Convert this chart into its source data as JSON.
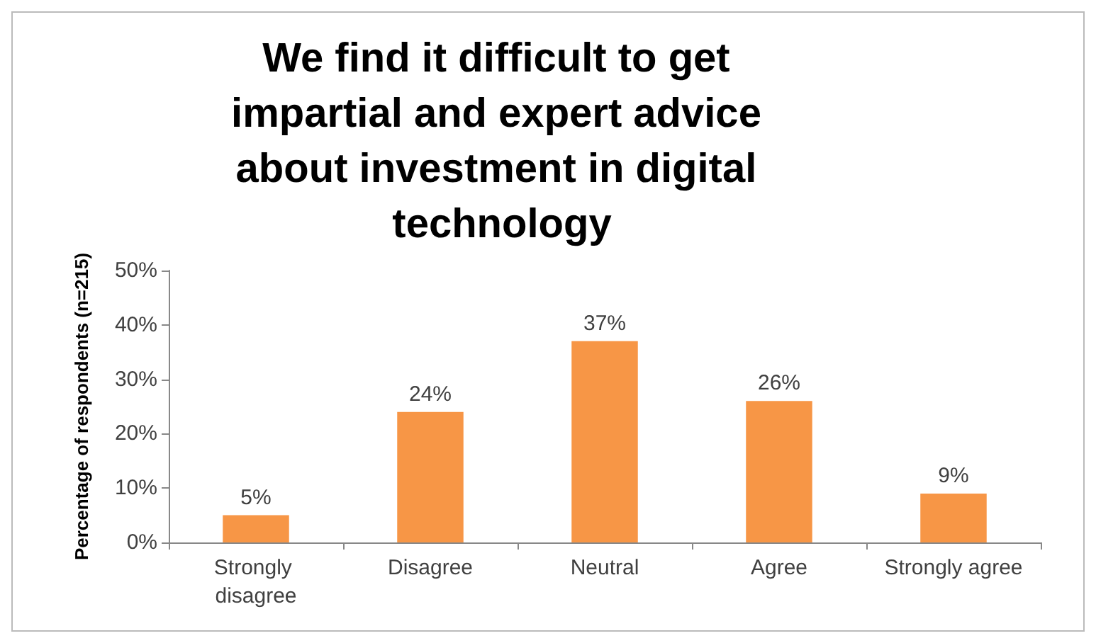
{
  "chart_data": {
    "type": "bar",
    "title": "We find it difficult to get impartial and expert advice about investment in digital technology",
    "ylabel": "Percentage of respondents (n=215)",
    "categories": [
      "Strongly disagree",
      "Disagree",
      "Neutral",
      "Agree",
      "Strongly agree"
    ],
    "values": [
      5,
      24,
      37,
      26,
      9
    ],
    "value_labels": [
      "5%",
      "24%",
      "37%",
      "26%",
      "9%"
    ],
    "color": "#f79646",
    "ylim": [
      0,
      50
    ],
    "yticks": [
      {
        "value": 0,
        "label": "0%"
      },
      {
        "value": 10,
        "label": "10%"
      },
      {
        "value": 20,
        "label": "20%"
      },
      {
        "value": 30,
        "label": "30%"
      },
      {
        "value": 40,
        "label": "40%"
      },
      {
        "value": 50,
        "label": "50%"
      }
    ],
    "grid": false
  }
}
